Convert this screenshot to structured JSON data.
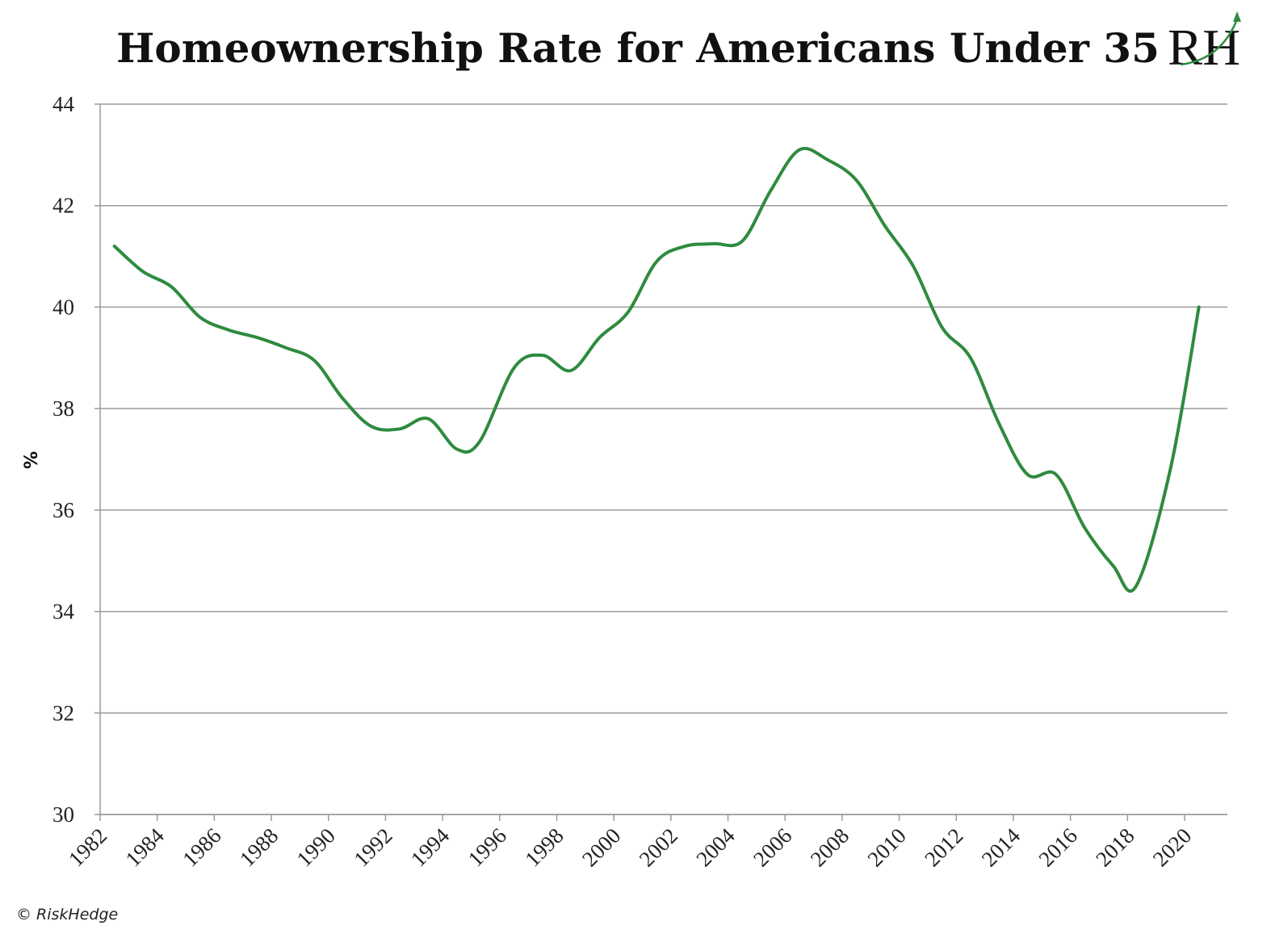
{
  "credit": "© RiskHedge",
  "logo": {
    "text": "RH",
    "accent_color": "#2e8b3e"
  },
  "chart_data": {
    "type": "line",
    "title": "Homeownership Rate for Americans Under 35",
    "xlabel": "",
    "ylabel": "%",
    "ylim": [
      30,
      44
    ],
    "yticks": [
      30,
      32,
      34,
      36,
      38,
      40,
      42,
      44
    ],
    "xlim": [
      1982,
      2021.5
    ],
    "xticks": [
      "1982",
      "1984",
      "1986",
      "1988",
      "1990",
      "1992",
      "1994",
      "1996",
      "1998",
      "2000",
      "2002",
      "2004",
      "2006",
      "2008",
      "2010",
      "2012",
      "2014",
      "2016",
      "2018",
      "2020"
    ],
    "grid": true,
    "line_color": "#2e8b3e",
    "series": [
      {
        "x": [
          1982.5,
          1983.5,
          1984.5,
          1985.5,
          1986.5,
          1987.5,
          1988.5,
          1989.5,
          1990.5,
          1991.5,
          1992.5,
          1993.5,
          1994.5,
          1995.3,
          1996.5,
          1997.5,
          1998.5,
          1999.5,
          2000.5,
          2001.5,
          2002.5,
          2003.5,
          2004.5,
          2005.5,
          2006.5,
          2007.5,
          2008.5,
          2009.5,
          2010.5,
          2011.5,
          2012.5,
          2013.5,
          2014.5,
          2015.5,
          2016.5,
          2017.5,
          2018.3,
          2019.5,
          2020.5
        ],
        "y": [
          41.2,
          40.7,
          40.4,
          39.8,
          39.55,
          39.4,
          39.2,
          38.95,
          38.2,
          37.65,
          37.6,
          37.8,
          37.2,
          37.35,
          38.8,
          39.05,
          38.75,
          39.4,
          39.9,
          40.9,
          41.2,
          41.25,
          41.3,
          42.3,
          43.1,
          42.9,
          42.5,
          41.6,
          40.8,
          39.6,
          39.0,
          37.7,
          36.7,
          36.7,
          35.65,
          34.9,
          34.5,
          36.8,
          40.0
        ]
      }
    ]
  }
}
